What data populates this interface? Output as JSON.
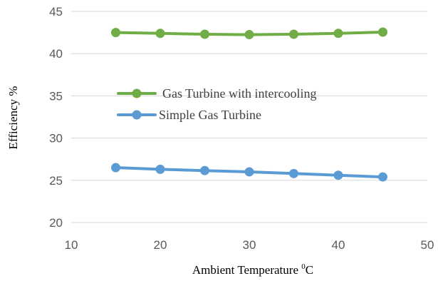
{
  "chart_data": {
    "type": "line",
    "x": [
      15,
      20,
      25,
      30,
      35,
      40,
      45
    ],
    "series": [
      {
        "name": "Gas Turbine with intercooling",
        "values": [
          42.5,
          42.4,
          42.3,
          42.25,
          42.3,
          42.4,
          42.55
        ],
        "color": "#70ad47"
      },
      {
        "name": "Simple Gas Turbine",
        "values": [
          26.5,
          26.3,
          26.15,
          26.0,
          25.8,
          25.6,
          25.4
        ],
        "color": "#5b9bd5"
      }
    ],
    "xlim": [
      10,
      50
    ],
    "ylim": [
      20,
      45
    ],
    "xticks": [
      10,
      20,
      30,
      40,
      50
    ],
    "yticks": [
      20,
      25,
      30,
      35,
      40,
      45
    ],
    "xlabel_main": "Ambient Temperature ",
    "xlabel_sup": "0",
    "xlabel_unit": "C",
    "ylabel": "Efficiency %",
    "grid": "horizontal",
    "legend_placement": "center-left"
  }
}
